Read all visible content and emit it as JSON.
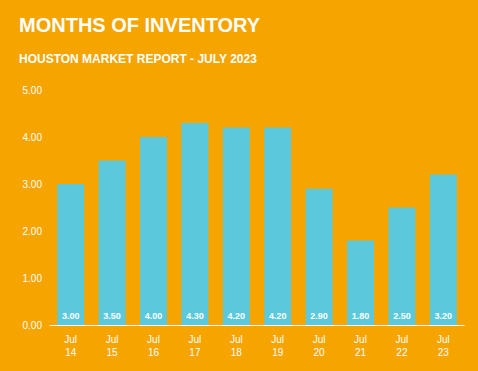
{
  "chart_data": {
    "type": "bar",
    "title": "MONTHS OF INVENTORY",
    "subtitle": "HOUSTON MARKET REPORT - JULY 2023",
    "categories": [
      "Jul\n14",
      "Jul\n15",
      "Jul\n16",
      "Jul\n17",
      "Jul\n18",
      "Jul\n19",
      "Jul\n20",
      "Jul\n21",
      "Jul\n22",
      "Jul\n23"
    ],
    "values": [
      3.0,
      3.5,
      4.0,
      4.3,
      4.2,
      4.2,
      2.9,
      1.8,
      2.5,
      3.2
    ],
    "value_labels": [
      "3.00",
      "3.50",
      "4.00",
      "4.30",
      "4.20",
      "4.20",
      "2.90",
      "1.80",
      "2.50",
      "3.20"
    ],
    "data_labels": true,
    "color": "#5BC8DC",
    "ylim": [
      0,
      5.0
    ],
    "yticks": [
      {
        "value": 0,
        "label": "0.00"
      },
      {
        "value": 1,
        "label": "1.00"
      },
      {
        "value": 2,
        "label": "2.00"
      },
      {
        "value": 3,
        "label": "3.00"
      },
      {
        "value": 4,
        "label": "4.00"
      },
      {
        "value": 5,
        "label": "5.00"
      }
    ],
    "grid": false
  }
}
